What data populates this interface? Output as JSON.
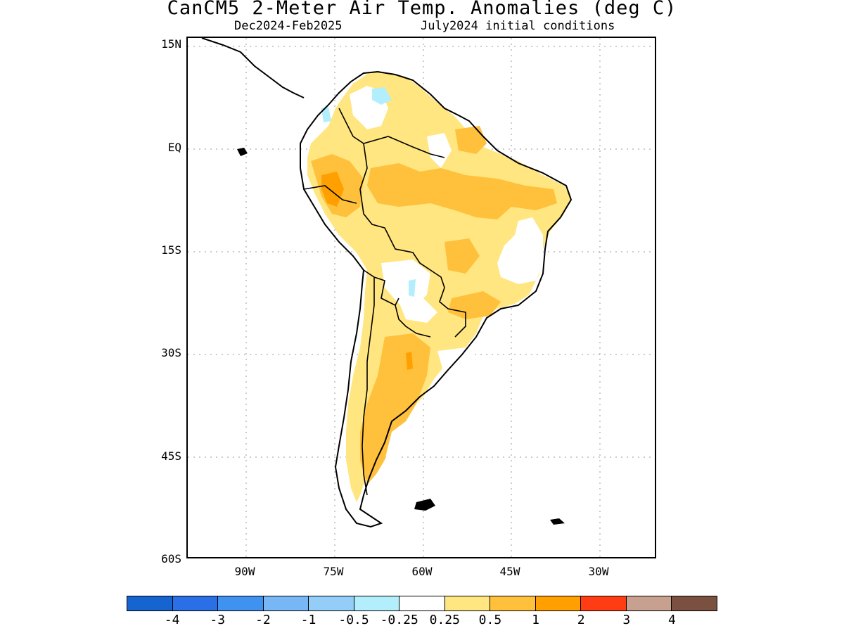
{
  "header": {
    "title": "CanCM5 2-Meter Air Temp. Anomalies (deg C)",
    "season": "Dec2024-Feb2025",
    "init": "July2024 initial conditions"
  },
  "map": {
    "lat_labels": [
      "15N",
      "EQ",
      "15S",
      "30S",
      "45S",
      "60S"
    ],
    "lon_labels": [
      "90W",
      "75W",
      "60W",
      "45W",
      "30W"
    ],
    "region": "South America",
    "land_outline_color": "#000000",
    "gridline_style": "dotted gray"
  },
  "legend": {
    "colors": [
      "#1664d0",
      "#2a6fe6",
      "#3f92f0",
      "#78b7f5",
      "#93cdf8",
      "#b2eefc",
      "#ffffff",
      "#ffe680",
      "#ffc03c",
      "#ffa000",
      "#ff3c14",
      "#c8a090",
      "#7a5040"
    ],
    "labels": [
      "-4",
      "-3",
      "-2",
      "-1",
      "-0.5",
      "-0.25",
      "0.25",
      "0.5",
      "1",
      "2",
      "3",
      "4"
    ]
  }
}
